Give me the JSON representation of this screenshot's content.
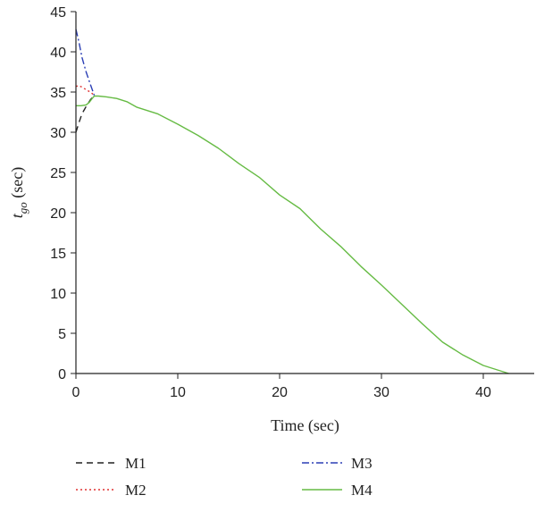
{
  "chart_data": {
    "type": "line",
    "xlabel": "Time (sec)",
    "ylabel_main": "t",
    "ylabel_sub": "go",
    "ylabel_suffix": " (sec)",
    "xlim": [
      0,
      45
    ],
    "ylim": [
      0,
      45
    ],
    "xticks": [
      0,
      10,
      20,
      30,
      40
    ],
    "yticks": [
      0,
      5,
      10,
      15,
      20,
      25,
      30,
      35,
      40,
      45
    ],
    "grid": false,
    "legend_position": "bottom",
    "series": [
      {
        "name": "M1",
        "color": "#222222",
        "style": "dashed",
        "x": [
          0,
          0.3,
          0.6,
          1.0,
          1.4,
          1.8
        ],
        "y": [
          30,
          31.2,
          32.3,
          33.2,
          34.0,
          34.6
        ]
      },
      {
        "name": "M2",
        "color": "#e03030",
        "style": "dotted",
        "x": [
          0,
          0.3,
          0.6,
          1.0,
          1.4,
          1.8
        ],
        "y": [
          35.7,
          35.8,
          35.6,
          35.3,
          35.0,
          34.6
        ]
      },
      {
        "name": "M3",
        "color": "#2b3fb5",
        "style": "dashdot",
        "x": [
          0,
          0.3,
          0.6,
          1.0,
          1.4,
          1.8
        ],
        "y": [
          42.8,
          41.2,
          39.3,
          37.5,
          36.0,
          34.6
        ]
      },
      {
        "name": "M4",
        "color": "#66bb44",
        "style": "solid",
        "x": [
          0,
          0.5,
          1.0,
          1.3,
          1.6,
          1.8,
          2.2,
          3,
          4,
          5,
          6,
          7,
          8,
          10,
          12,
          14,
          16,
          18,
          20,
          22,
          24,
          26,
          28,
          30,
          32,
          34,
          36,
          38,
          40,
          42.5
        ],
        "y": [
          33.3,
          33.3,
          33.4,
          33.7,
          34.2,
          34.5,
          34.5,
          34.4,
          34.2,
          33.8,
          33.1,
          32.7,
          32.3,
          31.0,
          29.6,
          28.0,
          26.1,
          24.4,
          22.2,
          20.5,
          18.0,
          15.8,
          13.3,
          11.0,
          8.6,
          6.2,
          3.9,
          2.3,
          1.0,
          0.0
        ]
      }
    ]
  }
}
